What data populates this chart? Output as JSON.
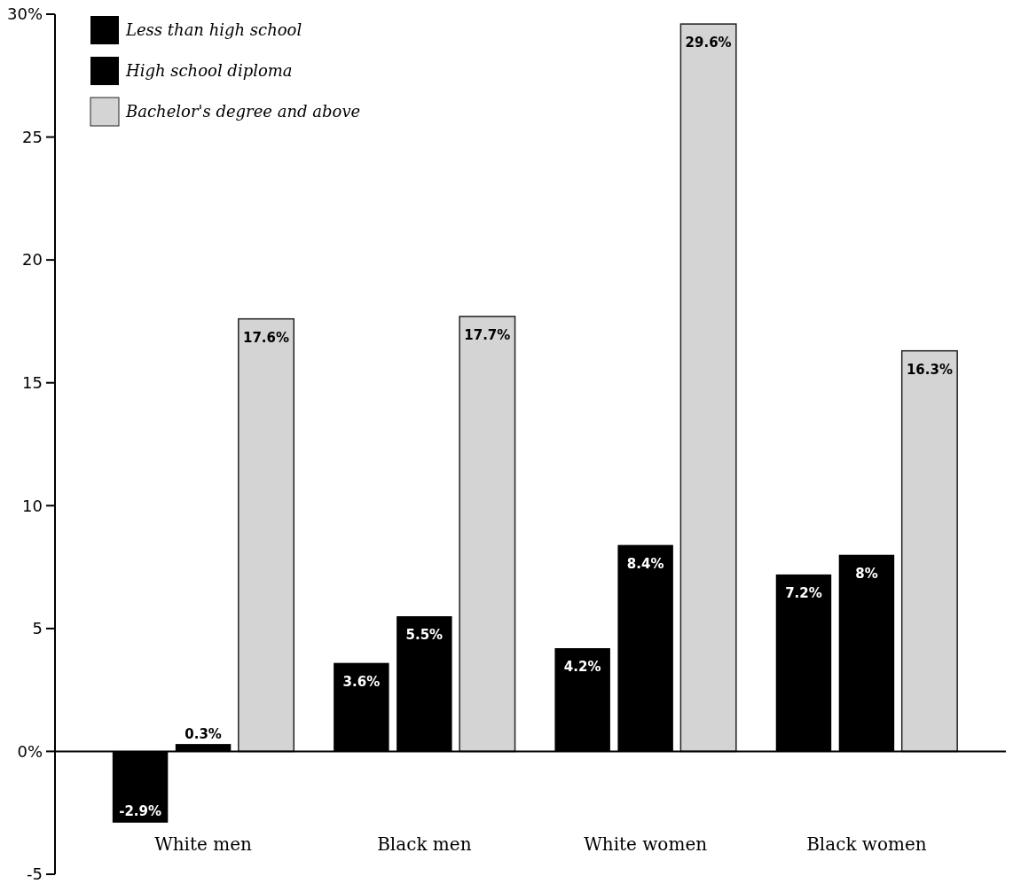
{
  "chart_data": {
    "type": "bar",
    "categories": [
      "White men",
      "Black men",
      "White women",
      "Black women"
    ],
    "series": [
      {
        "name": "Less than high school",
        "color": "#000000",
        "values": [
          -2.9,
          3.6,
          4.2,
          7.2
        ],
        "value_labels": [
          "-2.9%",
          "3.6%",
          "4.2%",
          "7.2%"
        ]
      },
      {
        "name": "High school diploma",
        "color": "#000000",
        "values": [
          0.3,
          5.5,
          8.4,
          8.0
        ],
        "value_labels": [
          "0.3%",
          "5.5%",
          "8.4%",
          "8%"
        ]
      },
      {
        "name": "Bachelor's degree and above",
        "color": "#d4d4d4",
        "values": [
          17.6,
          17.7,
          29.6,
          16.3
        ],
        "value_labels": [
          "17.6%",
          "17.7%",
          "29.6%",
          "16.3%"
        ]
      }
    ],
    "ylim": [
      -5,
      30
    ],
    "yticks": [
      {
        "value": 30,
        "label": "30%"
      },
      25,
      20,
      15,
      10,
      5,
      {
        "value": 0,
        "label": "0%"
      },
      -5
    ],
    "legend": "top left"
  }
}
